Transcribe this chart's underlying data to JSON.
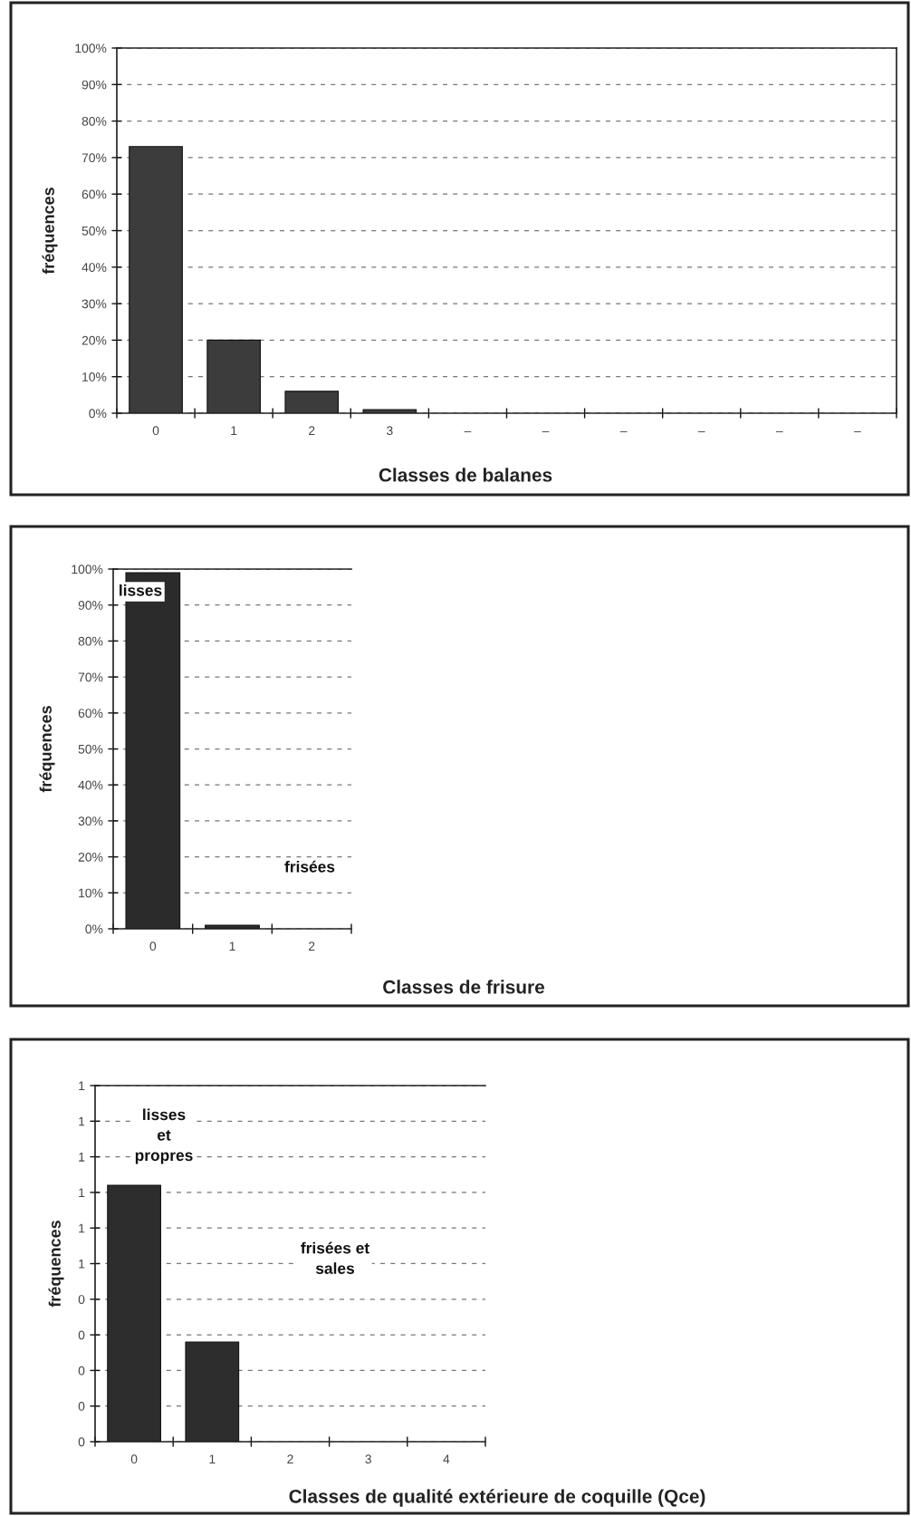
{
  "chart_data": [
    {
      "type": "bar",
      "xlabel": "Classes de balanes",
      "ylabel": "fréquences",
      "categories": [
        "0",
        "1",
        "2",
        "3",
        "–",
        "–",
        "–",
        "–",
        "–",
        "–"
      ],
      "values": [
        73,
        20,
        6,
        1,
        null,
        null,
        null,
        null,
        null,
        null
      ],
      "color": "#3c3c3c",
      "ylim": [
        0,
        100
      ],
      "yticks": [
        {
          "value": 0,
          "label": "0%"
        },
        {
          "value": 10,
          "label": "10%"
        },
        {
          "value": 20,
          "label": "20%"
        },
        {
          "value": 30,
          "label": "30%"
        },
        {
          "value": 40,
          "label": "40%"
        },
        {
          "value": 50,
          "label": "50%"
        },
        {
          "value": 60,
          "label": "60%"
        },
        {
          "value": 70,
          "label": "70%"
        },
        {
          "value": 80,
          "label": "80%"
        },
        {
          "value": 90,
          "label": "90%"
        },
        {
          "value": 100,
          "label": "100%"
        }
      ],
      "grid": "y"
    },
    {
      "type": "bar",
      "xlabel": "Classes de frisure",
      "ylabel": "fréquences",
      "categories": [
        "0",
        "1",
        "2"
      ],
      "values": [
        99,
        1,
        null
      ],
      "color": "#2b2b2b",
      "ylim": [
        0,
        100
      ],
      "yticks": [
        {
          "value": 0,
          "label": "0%"
        },
        {
          "value": 10,
          "label": "10%"
        },
        {
          "value": 20,
          "label": "20%"
        },
        {
          "value": 30,
          "label": "30%"
        },
        {
          "value": 40,
          "label": "40%"
        },
        {
          "value": 50,
          "label": "50%"
        },
        {
          "value": 60,
          "label": "60%"
        },
        {
          "value": 70,
          "label": "70%"
        },
        {
          "value": 80,
          "label": "80%"
        },
        {
          "value": 90,
          "label": "90%"
        },
        {
          "value": 100,
          "label": "100%"
        }
      ],
      "grid": "y",
      "annotations": [
        "lisses",
        "frisées"
      ]
    },
    {
      "type": "bar",
      "xlabel": "Classes de qualité extérieure de coquille (Qce)",
      "ylabel": "fréquences",
      "categories": [
        "0",
        "1",
        "2",
        "3",
        "4"
      ],
      "values": [
        0.72,
        0.28,
        null,
        null,
        null
      ],
      "color": "#2d2d2d",
      "ylim": [
        0,
        1
      ],
      "yticks": [
        {
          "value": 0,
          "label": "0"
        },
        {
          "value": 0.1,
          "label": "0"
        },
        {
          "value": 0.2,
          "label": "0"
        },
        {
          "value": 0.3,
          "label": "0"
        },
        {
          "value": 0.4,
          "label": "0"
        },
        {
          "value": 0.5,
          "label": "1"
        },
        {
          "value": 0.6,
          "label": "1"
        },
        {
          "value": 0.7,
          "label": "1"
        },
        {
          "value": 0.8,
          "label": "1"
        },
        {
          "value": 0.9,
          "label": "1"
        },
        {
          "value": 1,
          "label": "1"
        }
      ],
      "grid": "y",
      "annotations": [
        "lisses\net\npropres",
        "frisées et\nsales"
      ]
    }
  ]
}
